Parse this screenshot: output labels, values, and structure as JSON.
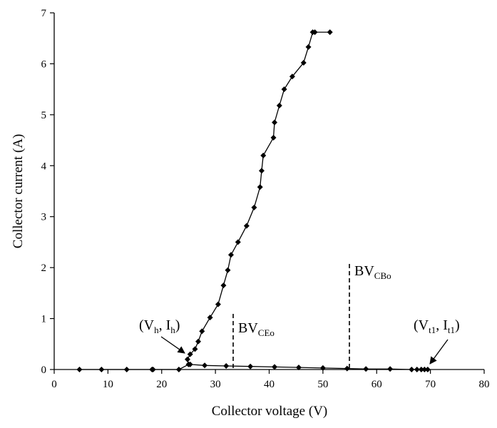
{
  "chart_data": {
    "type": "line",
    "title": "",
    "xlabel": "Collector voltage (V)",
    "ylabel": "Collector current (A)",
    "xlim": [
      0,
      80
    ],
    "ylim": [
      0,
      7
    ],
    "xticks": [
      "0",
      "10",
      "20",
      "30",
      "40",
      "50",
      "60",
      "70",
      "80"
    ],
    "yticks": [
      "0",
      "1",
      "2",
      "3",
      "4",
      "5",
      "6",
      "7"
    ],
    "grid": false,
    "legend": "none",
    "series": [
      {
        "marker": "diamond",
        "color": "#000000",
        "x": [
          4.7,
          8.8,
          13.5,
          18.2,
          18.4,
          23.2,
          25.0,
          24.8,
          25.3,
          26.2,
          26.8,
          27.5,
          29.0,
          30.5,
          31.5,
          32.3,
          32.9,
          34.2,
          35.8,
          37.2,
          38.3,
          38.6,
          38.9,
          40.8,
          41.0,
          41.9,
          42.8,
          44.3,
          46.4,
          47.3,
          48.1,
          48.5,
          51.3
        ],
        "y": [
          0.0,
          0.0,
          0.0,
          0.0,
          0.0,
          0.0,
          0.1,
          0.2,
          0.3,
          0.4,
          0.55,
          0.75,
          1.02,
          1.28,
          1.65,
          1.95,
          2.25,
          2.5,
          2.82,
          3.18,
          3.58,
          3.9,
          4.2,
          4.55,
          4.85,
          5.18,
          5.5,
          5.75,
          6.02,
          6.33,
          6.62,
          6.62,
          6.62
        ]
      },
      {
        "marker": "diamond",
        "color": "#000000",
        "x": [
          25.3,
          28.0,
          32.0,
          36.5,
          41.0,
          45.5,
          50.0,
          54.5,
          58.0,
          62.5,
          66.5,
          67.5,
          68.3,
          68.9,
          69.5
        ],
        "y": [
          0.1,
          0.08,
          0.07,
          0.06,
          0.05,
          0.04,
          0.03,
          0.02,
          0.01,
          0.01,
          0.0,
          0.0,
          0.0,
          0.0,
          0.0
        ]
      }
    ],
    "annotations": {
      "vh_ih": {
        "open": "(V",
        "sub1": "h",
        "mid": ", I",
        "sub2": "h",
        "close": ")"
      },
      "bv_ceo": {
        "main": "BV",
        "sub": "CEo"
      },
      "bv_cbo": {
        "main": "BV",
        "sub": "CBo"
      },
      "vt1_it1": {
        "open": "(V",
        "sub1": "t1",
        "mid": ", I",
        "sub2": "t1",
        "close": ")"
      }
    }
  }
}
